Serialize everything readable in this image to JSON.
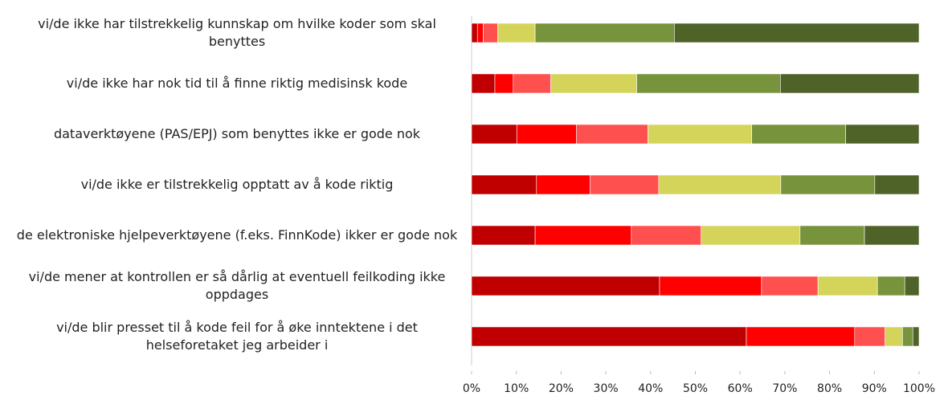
{
  "chart_data": {
    "type": "stacked_barh",
    "categories": [
      "vi/de ikke har tilstrekkelig kunnskap om hvilke koder som skal benyttes",
      "vi/de ikke har nok tid til å finne riktig medisinsk kode",
      "dataverktøyene (PAS/EPJ) som benyttes ikke er gode nok",
      "vi/de ikke er tilstrekkelig opptatt av å kode riktig",
      "de elektroniske hjelpeverktøyene (f.eks. FinnKode) ikker er gode nok",
      "vi/de mener at kontrollen er så dårlig at eventuell feilkoding ikke oppdages",
      "vi/de blir presset til å kode feil for å øke inntektene i det helseforetaket jeg arbeider i"
    ],
    "series": [
      {
        "color": "#c00000",
        "values": [
          1.3,
          5.2,
          10.1,
          14.5,
          14.2,
          42.0,
          61.4
        ]
      },
      {
        "color": "#ff0000",
        "values": [
          1.3,
          4.1,
          13.3,
          12.0,
          21.5,
          22.8,
          24.2
        ]
      },
      {
        "color": "#ff5050",
        "values": [
          3.2,
          8.4,
          16.0,
          15.3,
          15.6,
          12.6,
          6.8
        ]
      },
      {
        "color": "#d4d45a",
        "values": [
          8.4,
          19.2,
          23.2,
          27.3,
          22.1,
          13.3,
          3.9
        ]
      },
      {
        "color": "#77933c",
        "values": [
          31.1,
          32.1,
          21.0,
          21.0,
          14.4,
          6.1,
          2.3
        ]
      },
      {
        "color": "#4f6228",
        "values": [
          54.7,
          31.0,
          16.4,
          9.9,
          12.2,
          3.2,
          1.4
        ]
      }
    ],
    "xlim": [
      0,
      100
    ],
    "xticks": [
      {
        "value": 0,
        "label": "0%"
      },
      {
        "value": 10,
        "label": "10%"
      },
      {
        "value": 20,
        "label": "20%"
      },
      {
        "value": 30,
        "label": "30%"
      },
      {
        "value": 40,
        "label": "40%"
      },
      {
        "value": 50,
        "label": "50%"
      },
      {
        "value": 60,
        "label": "60%"
      },
      {
        "value": 70,
        "label": "70%"
      },
      {
        "value": 80,
        "label": "80%"
      },
      {
        "value": 90,
        "label": "90%"
      },
      {
        "value": 100,
        "label": "100%"
      }
    ]
  }
}
